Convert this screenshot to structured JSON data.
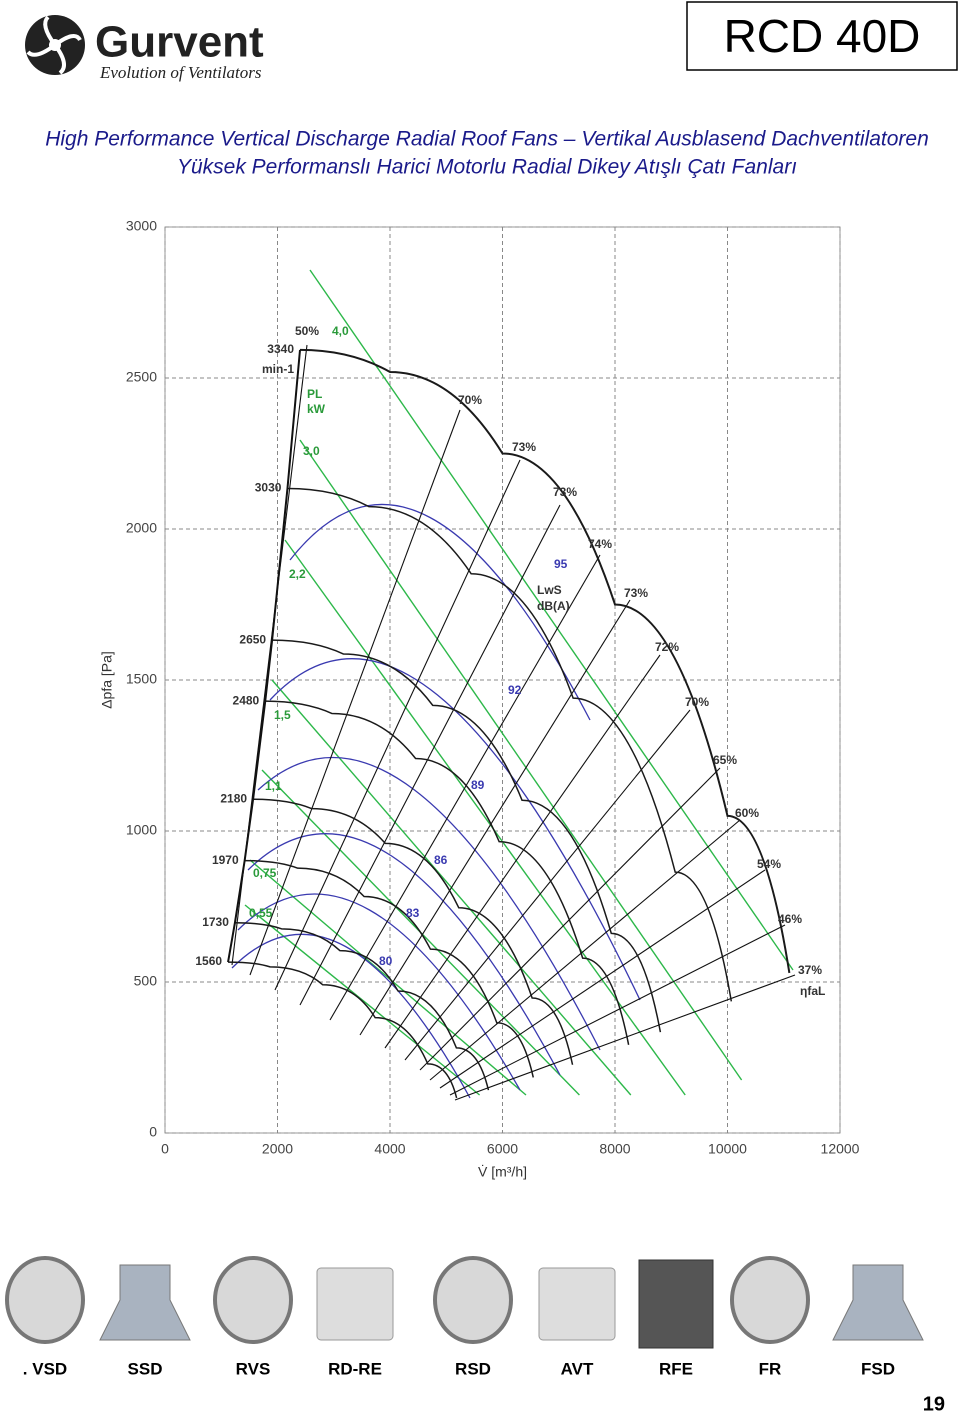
{
  "header": {
    "brand": "Gurvent",
    "tagline": "Evolution of Ventilators",
    "model": "RCD 40D"
  },
  "titles": [
    "High Performance Vertical Discharge Radial Roof Fans – Vertikal Ausblasend Dachventilatoren",
    "Yüksek Performanslı Harici Motorlu Radial Dikey Atışlı Çatı Fanları"
  ],
  "chart_data": {
    "type": "line",
    "y_label": "Δpfa [Pa]",
    "x_label": "V̇ [m³/h]",
    "xlim": [
      0,
      12000
    ],
    "xticks": [
      0,
      2000,
      4000,
      6000,
      8000,
      10000,
      12000
    ],
    "ylim": [
      0,
      3000
    ],
    "yticks": [
      0,
      500,
      1000,
      1500,
      2000,
      2500,
      3000
    ],
    "grid": true,
    "speed_unit": "min-1",
    "series": [
      {
        "name": "3340",
        "color": "#1a1a1a",
        "x": [
          2400,
          4000,
          6000,
          8000,
          10000,
          11100
        ],
        "values": [
          2593,
          2520,
          2250,
          1750,
          1050,
          530
        ]
      },
      {
        "name": "3030",
        "color": "#1a1a1a",
        "x": [
          2177,
          3628,
          5442,
          7256,
          9070,
          10068
        ],
        "values": [
          2134,
          2074,
          1852,
          1440,
          864,
          436
        ]
      },
      {
        "name": "2650",
        "color": "#1a1a1a",
        "x": [
          1904,
          3174,
          4760,
          6347,
          7934,
          8807
        ],
        "values": [
          1632,
          1586,
          1416,
          1102,
          661,
          334
        ]
      },
      {
        "name": "2480",
        "color": "#1a1a1a",
        "x": [
          1782,
          2970,
          4455,
          5940,
          7425,
          8242
        ],
        "values": [
          1430,
          1389,
          1240,
          965,
          579,
          292
        ]
      },
      {
        "name": "2180",
        "color": "#1a1a1a",
        "x": [
          1566,
          2611,
          3916,
          5222,
          6527,
          7245
        ],
        "values": [
          1105,
          1074,
          959,
          746,
          447,
          226
        ]
      },
      {
        "name": "1970",
        "color": "#1a1a1a",
        "x": [
          1416,
          2359,
          3539,
          4718,
          5898,
          6547
        ],
        "values": [
          902,
          877,
          783,
          609,
          365,
          184
        ]
      },
      {
        "name": "1730",
        "color": "#1a1a1a",
        "x": [
          1243,
          2072,
          3108,
          4144,
          5180,
          5750
        ],
        "values": [
          696,
          676,
          604,
          470,
          282,
          142
        ]
      },
      {
        "name": "1560",
        "color": "#1a1a1a",
        "x": [
          1121,
          1868,
          2802,
          3736,
          4671,
          5184
        ],
        "values": [
          566,
          550,
          491,
          382,
          229,
          116
        ]
      }
    ],
    "efficiency_labels": [
      "50%",
      "70%",
      "73%",
      "73%",
      "74%",
      "73%",
      "72%",
      "70%",
      "65%",
      "60%",
      "54%",
      "46%",
      "37%",
      "ηfaL"
    ],
    "power_labels": [
      "4,0",
      "3,0",
      "2,2",
      "1,5",
      "1,1",
      "0,75",
      "0,55"
    ],
    "power_unit": [
      "PL",
      "kW"
    ],
    "sound_labels": [
      "95",
      "92",
      "89",
      "86",
      "83",
      "80"
    ],
    "sound_unit": [
      "LwS",
      "dB(A)"
    ]
  },
  "accessories": [
    ". VSD",
    "SSD",
    "RVS",
    "RD-RE",
    "RSD",
    "AVT",
    "RFE",
    "FR",
    "FSD"
  ],
  "page_number": "19"
}
